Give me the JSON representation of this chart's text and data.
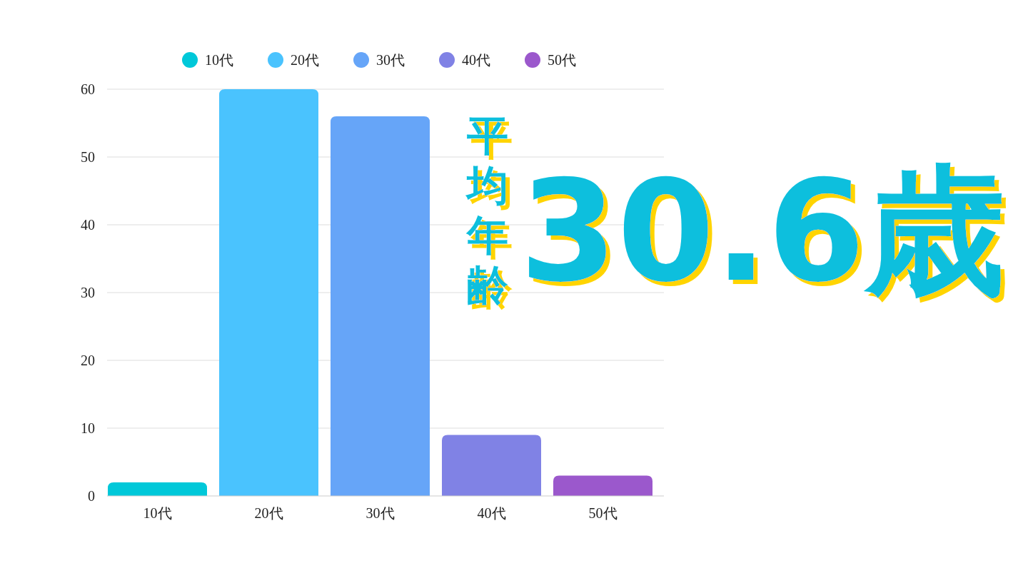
{
  "chart_data": {
    "type": "bar",
    "stacked": true,
    "categories": [
      "10代",
      "20代",
      "30代",
      "40代",
      "50代"
    ],
    "series": [
      {
        "name": "10代",
        "color": "#00c8d9",
        "values": [
          2,
          null,
          null,
          null,
          null
        ]
      },
      {
        "name": "20代",
        "color": "#4ac3fe",
        "values": [
          null,
          60,
          null,
          null,
          null
        ]
      },
      {
        "name": "30代",
        "color": "#66a5f8",
        "values": [
          null,
          null,
          56,
          null,
          null
        ]
      },
      {
        "name": "40代",
        "color": "#8082e5",
        "values": [
          null,
          null,
          null,
          9,
          null
        ]
      },
      {
        "name": "50代",
        "color": "#9b58cc",
        "values": [
          null,
          null,
          null,
          null,
          3
        ]
      }
    ],
    "ylim": [
      0,
      60
    ],
    "yticks": [
      0,
      10,
      20,
      30,
      40,
      50,
      60
    ],
    "grid": "y",
    "legend": "top",
    "annotations": [
      "平均年齢",
      "30.6歳"
    ]
  }
}
